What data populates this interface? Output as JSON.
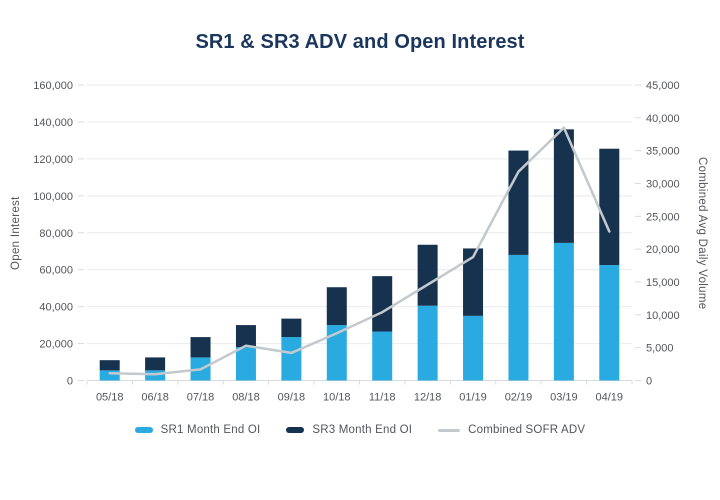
{
  "chart_data": {
    "type": "bar",
    "subtype": "stacked-bars-with-line-overlay",
    "title": "SR1 & SR3 ADV and Open Interest",
    "ylabel_left": "Open Interest",
    "ylabel_right": "Combined Avg Daily Volume",
    "categories": [
      "05/18",
      "06/18",
      "07/18",
      "08/18",
      "09/18",
      "10/18",
      "11/18",
      "12/18",
      "01/19",
      "02/19",
      "03/19",
      "04/19"
    ],
    "series": [
      {
        "name": "SR1 Month End OI",
        "type": "bar",
        "stack": "oi",
        "axis": "left",
        "color": "#29ABE2",
        "values": [
          5500,
          5500,
          12500,
          18000,
          23500,
          30000,
          26500,
          40500,
          35000,
          68000,
          74500,
          62500
        ]
      },
      {
        "name": "SR3 Month End OI",
        "type": "bar",
        "stack": "oi",
        "axis": "left",
        "color": "#16324F",
        "values": [
          5500,
          7000,
          11000,
          12000,
          10000,
          20500,
          30000,
          33000,
          36500,
          56500,
          61500,
          63000
        ]
      },
      {
        "name": "Combined SOFR ADV",
        "type": "line",
        "axis": "right",
        "color": "#C4C9CE",
        "values": [
          1100,
          950,
          1700,
          5300,
          4200,
          7200,
          10400,
          14600,
          18800,
          31800,
          38500,
          22700
        ]
      }
    ],
    "axes": {
      "left": {
        "min": 0,
        "max": 160000,
        "step": 20000
      },
      "right": {
        "min": 0,
        "max": 45000,
        "step": 5000
      }
    },
    "grid": "horizontal-left-axis-only",
    "legend_position": "bottom-center",
    "colors": {
      "title": "#1B365D",
      "grid": "#E9EBED",
      "axis": "#D8DBDE",
      "tick_text": "#54565B",
      "background": "#FFFFFF"
    }
  }
}
